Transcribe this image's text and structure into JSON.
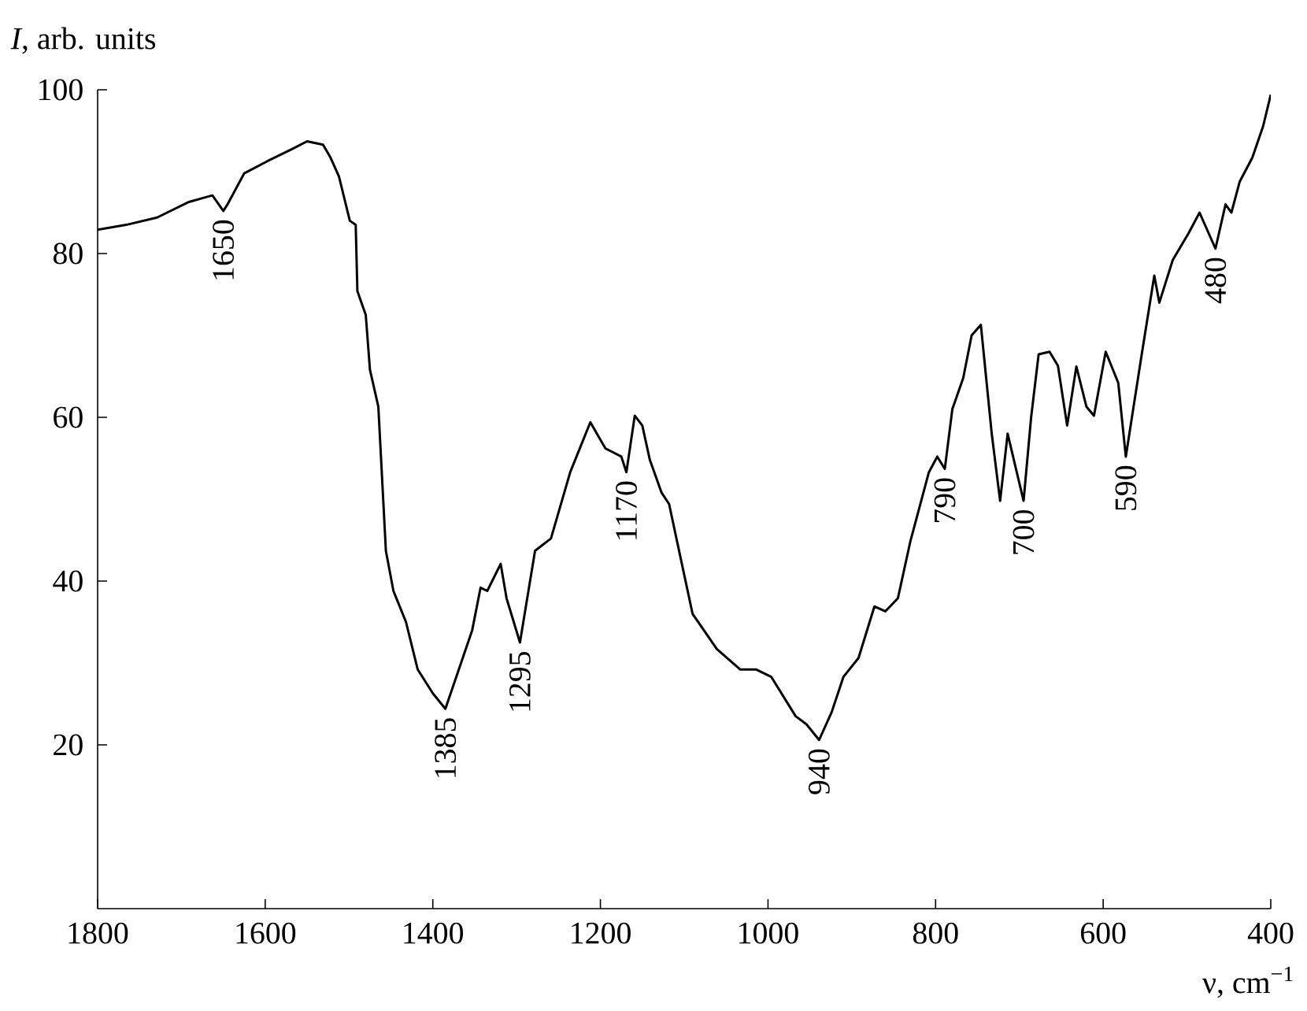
{
  "chart_data": {
    "type": "line",
    "xlabel": "ν, cm$^{−1}$",
    "ylabel": "*I*, arb. units",
    "x": [
      1800,
      1766,
      1729,
      1691,
      1663,
      1650,
      1645,
      1625,
      1597,
      1569,
      1550,
      1531,
      1522,
      1512,
      1499,
      1492,
      1490,
      1480,
      1475,
      1465,
      1456,
      1447,
      1432,
      1418,
      1400,
      1385,
      1372,
      1353,
      1343,
      1335,
      1319,
      1312,
      1296,
      1278,
      1259,
      1236,
      1212,
      1194,
      1175,
      1169,
      1159,
      1150,
      1141,
      1127,
      1118,
      1108,
      1090,
      1061,
      1033,
      1014,
      996,
      967,
      954,
      939,
      924,
      910,
      892,
      873,
      860,
      845,
      830,
      808,
      798,
      789,
      780,
      767,
      757,
      746,
      733,
      723,
      714,
      695,
      686,
      677,
      664,
      654,
      643,
      632,
      620,
      611,
      597,
      582,
      573,
      554,
      539,
      533,
      517,
      498,
      485,
      466,
      454,
      447,
      437,
      422,
      409,
      400
    ],
    "series": [
      {
        "color": "#000000",
        "values": [
          82.9,
          83.5,
          84.4,
          86.3,
          87.1,
          85.2,
          86.0,
          89.8,
          91.3,
          92.7,
          93.7,
          93.3,
          91.7,
          89.4,
          84.0,
          83.5,
          75.4,
          72.5,
          65.8,
          61.3,
          43.7,
          38.8,
          35.0,
          29.2,
          26.3,
          24.4,
          28.3,
          34.0,
          39.2,
          38.8,
          42.1,
          37.9,
          32.5,
          43.7,
          45.2,
          53.3,
          59.4,
          56.2,
          55.2,
          53.3,
          60.2,
          59.0,
          54.8,
          50.8,
          49.4,
          44.6,
          36.0,
          31.7,
          29.2,
          29.2,
          28.3,
          23.5,
          22.5,
          20.6,
          24.0,
          28.3,
          30.6,
          36.9,
          36.3,
          37.9,
          44.9,
          53.3,
          55.2,
          53.7,
          61.0,
          64.8,
          70.0,
          71.3,
          58.0,
          49.8,
          58.0,
          49.8,
          60.0,
          67.7,
          68.0,
          66.3,
          59.0,
          66.2,
          61.3,
          60.2,
          68.0,
          64.2,
          55.2,
          67.7,
          77.3,
          74.0,
          79.2,
          82.5,
          85.0,
          80.6,
          86.0,
          85.0,
          88.8,
          91.7,
          95.6,
          99.4
        ]
      }
    ],
    "xlim": [
      1800,
      400
    ],
    "ylim": [
      0,
      100
    ],
    "xticks": [
      1800,
      1600,
      1400,
      1200,
      1000,
      800,
      600,
      400
    ],
    "yticks": [
      20,
      40,
      60,
      80,
      100
    ],
    "annotations": [
      {
        "text": "1650",
        "x": 1650,
        "y": 85.2
      },
      {
        "text": "1385",
        "x": 1385,
        "y": 24.4
      },
      {
        "text": "1295",
        "x": 1296,
        "y": 32.5
      },
      {
        "text": "1170",
        "x": 1169,
        "y": 53.3
      },
      {
        "text": "940",
        "x": 939,
        "y": 20.6
      },
      {
        "text": "790",
        "x": 789,
        "y": 53.7
      },
      {
        "text": "700",
        "x": 695,
        "y": 49.8
      },
      {
        "text": "590",
        "x": 573,
        "y": 55.2
      },
      {
        "text": "480",
        "x": 466,
        "y": 80.6
      }
    ]
  }
}
